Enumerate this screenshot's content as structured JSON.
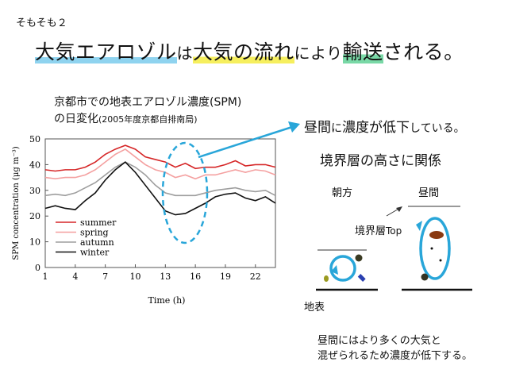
{
  "page_label": "そもそも２",
  "title": {
    "part1": "大気エアロゾル",
    "part2": "は",
    "part3": "大気の流れ",
    "part4": "により",
    "part5": "輸送",
    "part6": "される。"
  },
  "caption_line1": "京都市での地表エアロゾル濃度(SPM)",
  "caption_line2_main": "の日変化",
  "caption_line2_small": "(2005年度京都自排南局)",
  "note1": {
    "part1": "昼間",
    "part2": "に",
    "part3": "濃度が低下",
    "part4": "している。"
  },
  "heading2": "境界層の高さに関係",
  "diagram": {
    "morning_label": "朝方",
    "day_label": "昼間",
    "top_label_main": "境界層",
    "top_label_small": "Top",
    "ground_label": "地表"
  },
  "footer_line1": "昼間にはより多くの大気と",
  "footer_line2": "混ぜられるため濃度が低下する。",
  "colors": {
    "summer": "#d62728",
    "spring": "#f4a0a0",
    "autumn": "#9e9e9e",
    "winter": "#111111",
    "highlight": "#29a6d9"
  },
  "chart_data": {
    "type": "line",
    "xlabel": "Time (h)",
    "ylabel": "SPM concentration (μg m⁻³)",
    "xlim": [
      1,
      24
    ],
    "ylim": [
      0,
      50
    ],
    "x_ticks": [
      1,
      4,
      7,
      10,
      13,
      16,
      19,
      22
    ],
    "y_ticks": [
      0,
      10,
      20,
      30,
      40,
      50
    ],
    "legend_position": "bottom-left",
    "x": [
      1,
      2,
      3,
      4,
      5,
      6,
      7,
      8,
      9,
      10,
      11,
      12,
      13,
      14,
      15,
      16,
      17,
      18,
      19,
      20,
      21,
      22,
      23,
      24
    ],
    "series": [
      {
        "name": "summer",
        "color": "#d62728",
        "values": [
          38,
          37.5,
          38,
          38,
          39,
          41,
          44,
          46,
          47.5,
          46,
          43,
          42,
          41,
          39,
          40.5,
          38.5,
          39,
          39,
          40,
          41.5,
          39.5,
          40,
          40,
          39
        ]
      },
      {
        "name": "spring",
        "color": "#f4a0a0",
        "values": [
          35,
          34.5,
          35,
          35,
          36,
          38,
          41,
          44,
          46,
          43,
          40,
          38,
          37,
          35,
          36,
          34.5,
          36,
          36,
          37,
          38,
          37,
          38,
          37.5,
          36
        ]
      },
      {
        "name": "autumn",
        "color": "#9e9e9e",
        "values": [
          28,
          28.5,
          28,
          29,
          31,
          33,
          36,
          39,
          41,
          39,
          36,
          32,
          29,
          28,
          28,
          28,
          29,
          30,
          30.5,
          31,
          30,
          29.5,
          30,
          28
        ]
      },
      {
        "name": "winter",
        "color": "#111111",
        "values": [
          23,
          24,
          23,
          22.5,
          26,
          29,
          34,
          38,
          41,
          37,
          32,
          27,
          22,
          20.5,
          21,
          23,
          25,
          27.5,
          28.5,
          29,
          27,
          26,
          27.5,
          25
        ]
      }
    ]
  }
}
